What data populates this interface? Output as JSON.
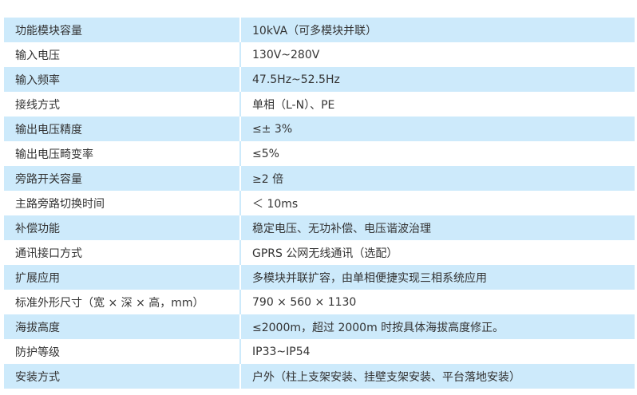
{
  "rows": [
    {
      "label": "功能模块容量",
      "value": "10kVA（可多模块并联）"
    },
    {
      "label": "输入电压",
      "value": "130V~280V"
    },
    {
      "label": "输入频率",
      "value": "47.5Hz~52.5Hz"
    },
    {
      "label": "接线方式",
      "value": "单相（L-N）、PE"
    },
    {
      "label": "输出电压精度",
      "value": "≤± 3%"
    },
    {
      "label": "输出电压畸变率",
      "value": "≤5%"
    },
    {
      "label": "旁路开关容量",
      "value": "≥2 倍"
    },
    {
      "label": "主路旁路切换时间",
      "value": "＜ 10ms"
    },
    {
      "label": "补偿功能",
      "value": "稳定电压、无功补偿、电压谐波治理"
    },
    {
      "label": "通讯接口方式",
      "value": "GPRS 公网无线通讯（选配）"
    },
    {
      "label": "扩展应用",
      "value": "多模块并联扩容，由单相便捷实现三相系统应用"
    },
    {
      "label": "标准外形尺寸（宽 × 深 × 高，mm）",
      "value": "790 × 560 × 1130"
    },
    {
      "label": "海拔高度",
      "value": "≤2000m，超过 2000m 时按具体海拔高度修正。"
    },
    {
      "label": "防护等级",
      "value": "IP33~IP54"
    },
    {
      "label": "安装方式",
      "value": "户外（柱上支架安装、挂壁支架安装、平台落地安装）"
    }
  ]
}
